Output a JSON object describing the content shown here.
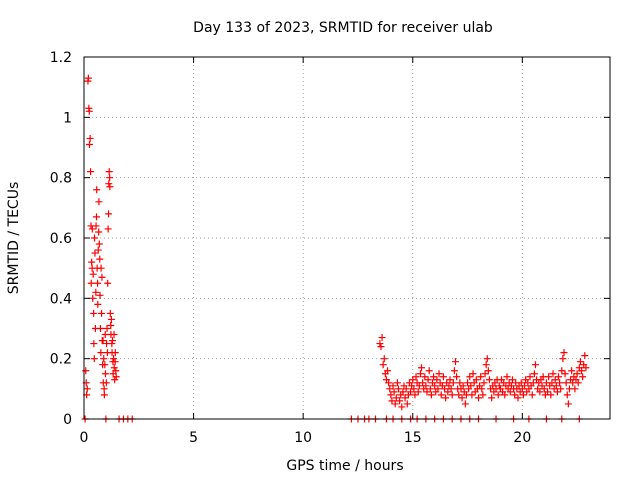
{
  "colors": {
    "series": "#ff0000",
    "grid": "#a0a0a0",
    "axis": "#000000"
  },
  "chart_data": {
    "type": "scatter",
    "title": "Day 133 of 2023, SRMTID for receiver ulab",
    "xlabel": "GPS time / hours",
    "ylabel": "SRMTID / TECUs",
    "xlim": [
      0,
      24
    ],
    "ylim": [
      0,
      1.2
    ],
    "xticks": [
      0,
      5,
      10,
      15,
      20
    ],
    "yticks": [
      0,
      0.2,
      0.4,
      0.6,
      0.8,
      1,
      1.2
    ],
    "xtick_labels": [
      "0",
      "5",
      "10",
      "15",
      "20"
    ],
    "ytick_labels": [
      "0",
      "0.2",
      "0.4",
      "0.6",
      "0.8",
      "1",
      "1.2"
    ],
    "grid": true,
    "marker": "+",
    "series": [
      {
        "name": "ulab",
        "points": [
          [
            0.05,
            0.0
          ],
          [
            0.08,
            0.16
          ],
          [
            0.1,
            0.12
          ],
          [
            0.12,
            0.08
          ],
          [
            0.15,
            0.1
          ],
          [
            0.18,
            1.12
          ],
          [
            0.2,
            1.13
          ],
          [
            0.22,
            1.03
          ],
          [
            0.24,
            1.02
          ],
          [
            0.25,
            0.91
          ],
          [
            0.28,
            0.93
          ],
          [
            0.3,
            0.82
          ],
          [
            0.32,
            0.64
          ],
          [
            0.33,
            0.45
          ],
          [
            0.35,
            0.52
          ],
          [
            0.37,
            0.5
          ],
          [
            0.38,
            0.63
          ],
          [
            0.4,
            0.4
          ],
          [
            0.42,
            0.48
          ],
          [
            0.44,
            0.35
          ],
          [
            0.45,
            0.25
          ],
          [
            0.47,
            0.2
          ],
          [
            0.48,
            0.6
          ],
          [
            0.5,
            0.55
          ],
          [
            0.52,
            0.3
          ],
          [
            0.54,
            0.42
          ],
          [
            0.55,
            0.64
          ],
          [
            0.57,
            0.67
          ],
          [
            0.58,
            0.76
          ],
          [
            0.6,
            0.5
          ],
          [
            0.62,
            0.45
          ],
          [
            0.63,
            0.38
          ],
          [
            0.65,
            0.56
          ],
          [
            0.67,
            0.62
          ],
          [
            0.68,
            0.72
          ],
          [
            0.7,
            0.58
          ],
          [
            0.72,
            0.53
          ],
          [
            0.73,
            0.41
          ],
          [
            0.75,
            0.3
          ],
          [
            0.77,
            0.22
          ],
          [
            0.78,
            0.5
          ],
          [
            0.8,
            0.35
          ],
          [
            0.82,
            0.47
          ],
          [
            0.83,
            0.26
          ],
          [
            0.85,
            0.18
          ],
          [
            0.87,
            0.26
          ],
          [
            0.88,
            0.12
          ],
          [
            0.9,
            0.2
          ],
          [
            0.92,
            0.1
          ],
          [
            0.93,
            0.08
          ],
          [
            0.95,
            0.18
          ],
          [
            0.97,
            0.28
          ],
          [
            0.98,
            0.15
          ],
          [
            1.0,
            0.0
          ],
          [
            1.02,
            0.12
          ],
          [
            1.03,
            0.25
          ],
          [
            1.05,
            0.3
          ],
          [
            1.07,
            0.22
          ],
          [
            1.08,
            0.45
          ],
          [
            1.1,
            0.63
          ],
          [
            1.12,
            0.68
          ],
          [
            1.13,
            0.78
          ],
          [
            1.15,
            0.82
          ],
          [
            1.17,
            0.8
          ],
          [
            1.18,
            0.77
          ],
          [
            1.2,
            0.35
          ],
          [
            1.22,
            0.31
          ],
          [
            1.23,
            0.28
          ],
          [
            1.25,
            0.33
          ],
          [
            1.27,
            0.25
          ],
          [
            1.28,
            0.22
          ],
          [
            1.3,
            0.26
          ],
          [
            1.32,
            0.19
          ],
          [
            1.33,
            0.15
          ],
          [
            1.35,
            0.2
          ],
          [
            1.37,
            0.28
          ],
          [
            1.38,
            0.17
          ],
          [
            1.4,
            0.13
          ],
          [
            1.42,
            0.19
          ],
          [
            1.43,
            0.22
          ],
          [
            1.45,
            0.16
          ],
          [
            1.47,
            0.14
          ],
          [
            1.6,
            0.0
          ],
          [
            1.8,
            0.0
          ],
          [
            2.0,
            0.0
          ],
          [
            2.2,
            0.0
          ],
          [
            12.2,
            0.0
          ],
          [
            12.5,
            0.0
          ],
          [
            12.8,
            0.0
          ],
          [
            13.0,
            0.0
          ],
          [
            13.3,
            0.0
          ],
          [
            13.5,
            0.25
          ],
          [
            13.55,
            0.24
          ],
          [
            13.6,
            0.27
          ],
          [
            13.65,
            0.18
          ],
          [
            13.7,
            0.2
          ],
          [
            13.75,
            0.15
          ],
          [
            13.8,
            0.13
          ],
          [
            13.85,
            0.16
          ],
          [
            13.9,
            0.12
          ],
          [
            13.95,
            0.1
          ],
          [
            14.0,
            0.08
          ],
          [
            14.05,
            0.06
          ],
          [
            14.1,
            0.11
          ],
          [
            14.15,
            0.09
          ],
          [
            14.2,
            0.05
          ],
          [
            14.25,
            0.07
          ],
          [
            14.3,
            0.12
          ],
          [
            14.35,
            0.1
          ],
          [
            14.4,
            0.06
          ],
          [
            14.45,
            0.08
          ],
          [
            14.5,
            0.04
          ],
          [
            14.55,
            0.09
          ],
          [
            14.6,
            0.11
          ],
          [
            14.65,
            0.07
          ],
          [
            14.7,
            0.1
          ],
          [
            14.75,
            0.05
          ],
          [
            14.8,
            0.08
          ],
          [
            14.85,
            0.12
          ],
          [
            14.9,
            0.09
          ],
          [
            14.95,
            0.11
          ],
          [
            15.0,
            0.13
          ],
          [
            15.05,
            0.1
          ],
          [
            15.1,
            0.08
          ],
          [
            15.15,
            0.14
          ],
          [
            15.2,
            0.12
          ],
          [
            15.25,
            0.09
          ],
          [
            15.3,
            0.11
          ],
          [
            15.35,
            0.15
          ],
          [
            15.4,
            0.17
          ],
          [
            15.45,
            0.12
          ],
          [
            15.5,
            0.1
          ],
          [
            15.55,
            0.14
          ],
          [
            15.6,
            0.11
          ],
          [
            15.65,
            0.09
          ],
          [
            15.7,
            0.13
          ],
          [
            15.75,
            0.16
          ],
          [
            15.8,
            0.1
          ],
          [
            15.85,
            0.08
          ],
          [
            15.9,
            0.12
          ],
          [
            15.95,
            0.14
          ],
          [
            16.0,
            0.11
          ],
          [
            16.05,
            0.09
          ],
          [
            16.1,
            0.13
          ],
          [
            16.15,
            0.1
          ],
          [
            16.2,
            0.15
          ],
          [
            16.25,
            0.12
          ],
          [
            16.3,
            0.08
          ],
          [
            16.35,
            0.11
          ],
          [
            16.4,
            0.14
          ],
          [
            16.45,
            0.1
          ],
          [
            16.5,
            0.07
          ],
          [
            16.55,
            0.12
          ],
          [
            16.6,
            0.09
          ],
          [
            16.65,
            0.11
          ],
          [
            16.7,
            0.13
          ],
          [
            16.75,
            0.1
          ],
          [
            16.8,
            0.08
          ],
          [
            16.85,
            0.12
          ],
          [
            16.9,
            0.16
          ],
          [
            16.95,
            0.19
          ],
          [
            17.0,
            0.14
          ],
          [
            17.05,
            0.1
          ],
          [
            17.1,
            0.08
          ],
          [
            17.15,
            0.12
          ],
          [
            17.2,
            0.1
          ],
          [
            17.25,
            0.07
          ],
          [
            17.3,
            0.11
          ],
          [
            17.35,
            0.09
          ],
          [
            17.4,
            0.05
          ],
          [
            17.45,
            0.08
          ],
          [
            17.5,
            0.12
          ],
          [
            17.55,
            0.1
          ],
          [
            17.6,
            0.14
          ],
          [
            17.65,
            0.11
          ],
          [
            17.7,
            0.08
          ],
          [
            17.75,
            0.15
          ],
          [
            17.8,
            0.12
          ],
          [
            17.85,
            0.09
          ],
          [
            17.9,
            0.13
          ],
          [
            17.95,
            0.1
          ],
          [
            18.0,
            0.07
          ],
          [
            18.05,
            0.11
          ],
          [
            18.1,
            0.14
          ],
          [
            18.15,
            0.1
          ],
          [
            18.2,
            0.08
          ],
          [
            18.25,
            0.12
          ],
          [
            18.3,
            0.15
          ],
          [
            18.35,
            0.18
          ],
          [
            18.4,
            0.2
          ],
          [
            18.45,
            0.16
          ],
          [
            18.5,
            0.13
          ],
          [
            18.55,
            0.1
          ],
          [
            18.6,
            0.07
          ],
          [
            18.65,
            0.11
          ],
          [
            18.7,
            0.09
          ],
          [
            18.75,
            0.12
          ],
          [
            18.8,
            0.1
          ],
          [
            18.85,
            0.13
          ],
          [
            18.9,
            0.08
          ],
          [
            18.95,
            0.11
          ],
          [
            19.0,
            0.1
          ],
          [
            19.05,
            0.13
          ],
          [
            19.1,
            0.09
          ],
          [
            19.15,
            0.12
          ],
          [
            19.2,
            0.08
          ],
          [
            19.25,
            0.11
          ],
          [
            19.3,
            0.14
          ],
          [
            19.35,
            0.1
          ],
          [
            19.4,
            0.12
          ],
          [
            19.45,
            0.09
          ],
          [
            19.5,
            0.11
          ],
          [
            19.55,
            0.13
          ],
          [
            19.6,
            0.1
          ],
          [
            19.65,
            0.08
          ],
          [
            19.7,
            0.12
          ],
          [
            19.75,
            0.1
          ],
          [
            19.8,
            0.07
          ],
          [
            19.85,
            0.11
          ],
          [
            19.9,
            0.09
          ],
          [
            19.95,
            0.12
          ],
          [
            20.0,
            0.1
          ],
          [
            20.05,
            0.08
          ],
          [
            20.1,
            0.11
          ],
          [
            20.15,
            0.13
          ],
          [
            20.2,
            0.09
          ],
          [
            20.25,
            0.12
          ],
          [
            20.3,
            0.1
          ],
          [
            20.35,
            0.14
          ],
          [
            20.4,
            0.11
          ],
          [
            20.45,
            0.08
          ],
          [
            20.5,
            0.12
          ],
          [
            20.55,
            0.15
          ],
          [
            20.6,
            0.18
          ],
          [
            20.65,
            0.13
          ],
          [
            20.7,
            0.1
          ],
          [
            20.75,
            0.12
          ],
          [
            20.8,
            0.09
          ],
          [
            20.85,
            0.13
          ],
          [
            20.9,
            0.11
          ],
          [
            20.95,
            0.14
          ],
          [
            21.0,
            0.1
          ],
          [
            21.05,
            0.08
          ],
          [
            21.1,
            0.12
          ],
          [
            21.15,
            0.09
          ],
          [
            21.2,
            0.14
          ],
          [
            21.25,
            0.11
          ],
          [
            21.3,
            0.08
          ],
          [
            21.35,
            0.12
          ],
          [
            21.4,
            0.15
          ],
          [
            21.45,
            0.1
          ],
          [
            21.5,
            0.13
          ],
          [
            21.55,
            0.11
          ],
          [
            21.6,
            0.09
          ],
          [
            21.65,
            0.14
          ],
          [
            21.7,
            0.12
          ],
          [
            21.75,
            0.1
          ],
          [
            21.8,
            0.16
          ],
          [
            21.85,
            0.2
          ],
          [
            21.9,
            0.22
          ],
          [
            21.95,
            0.15
          ],
          [
            22.0,
            0.12
          ],
          [
            22.05,
            0.08
          ],
          [
            22.1,
            0.05
          ],
          [
            22.15,
            0.1
          ],
          [
            22.2,
            0.13
          ],
          [
            22.25,
            0.16
          ],
          [
            22.3,
            0.12
          ],
          [
            22.35,
            0.14
          ],
          [
            22.4,
            0.1
          ],
          [
            22.45,
            0.13
          ],
          [
            22.5,
            0.15
          ],
          [
            22.55,
            0.12
          ],
          [
            22.6,
            0.17
          ],
          [
            22.65,
            0.19
          ],
          [
            22.7,
            0.16
          ],
          [
            22.75,
            0.14
          ],
          [
            22.8,
            0.18
          ],
          [
            22.85,
            0.21
          ],
          [
            22.9,
            0.17
          ],
          [
            13.8,
            0.0
          ],
          [
            14.1,
            0.0
          ],
          [
            14.5,
            0.0
          ],
          [
            14.9,
            0.0
          ],
          [
            15.2,
            0.0
          ],
          [
            15.6,
            0.0
          ],
          [
            16.0,
            0.0
          ],
          [
            16.4,
            0.0
          ],
          [
            16.8,
            0.0
          ],
          [
            17.2,
            0.0
          ],
          [
            17.6,
            0.0
          ],
          [
            18.0,
            0.0
          ],
          [
            18.8,
            0.0
          ],
          [
            19.6,
            0.0
          ],
          [
            20.3,
            0.0
          ],
          [
            21.1,
            0.0
          ],
          [
            21.8,
            0.0
          ],
          [
            22.6,
            0.0
          ]
        ]
      }
    ]
  }
}
